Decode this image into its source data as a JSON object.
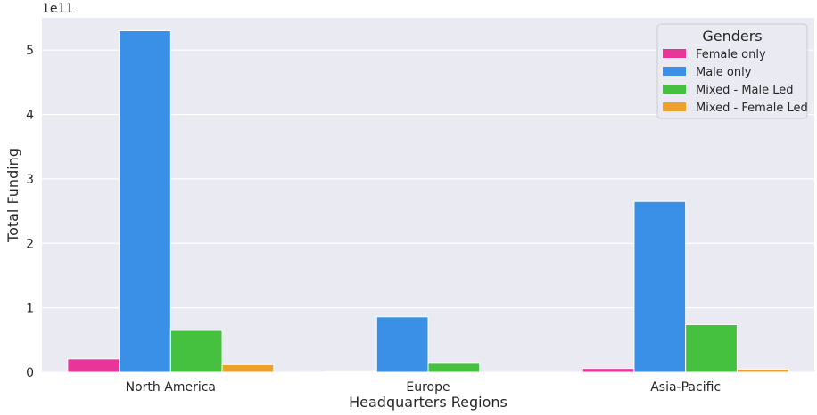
{
  "chart_data": {
    "type": "bar",
    "title": "",
    "xlabel": "Headquarters Regions",
    "ylabel": "Total Funding",
    "offset_label": "1e11",
    "categories": [
      "North America",
      "Europe",
      "Asia-Pacific"
    ],
    "yticks": [
      0,
      1,
      2,
      3,
      4,
      5
    ],
    "ylim": [
      0,
      5.5
    ],
    "grid": true,
    "legend": {
      "title": "Genders",
      "placement": "top-right"
    },
    "series": [
      {
        "name": "Female only",
        "color": "#e7359a",
        "values": [
          0.21,
          0.01,
          0.06
        ]
      },
      {
        "name": "Male only",
        "color": "#3a8fe6",
        "values": [
          5.3,
          0.86,
          2.65
        ]
      },
      {
        "name": "Mixed - Male Led",
        "color": "#45c03f",
        "values": [
          0.65,
          0.14,
          0.74
        ]
      },
      {
        "name": "Mixed - Female Led",
        "color": "#eda02a",
        "values": [
          0.12,
          0.0,
          0.05
        ]
      }
    ]
  }
}
